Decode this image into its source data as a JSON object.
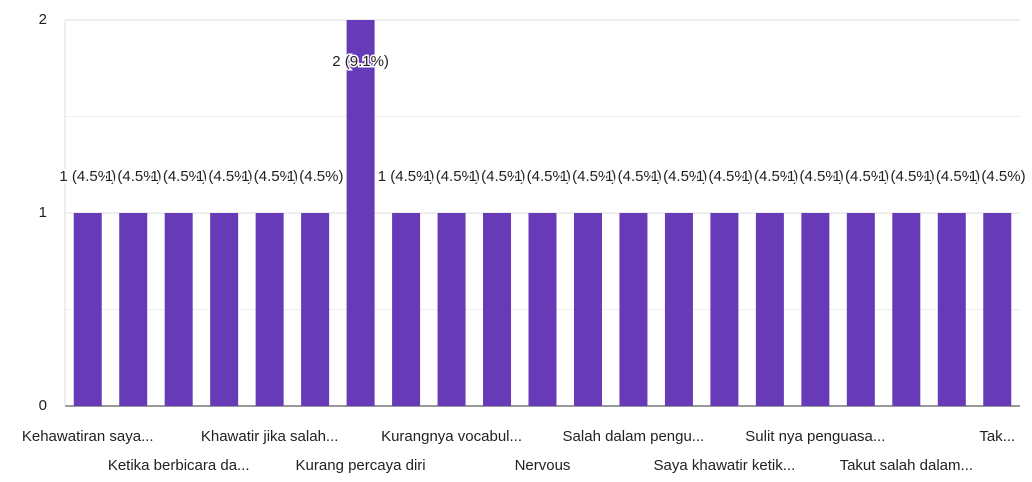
{
  "chart_data": {
    "type": "bar",
    "categories": [
      "Kehawatiran saya...",
      null,
      "Ketika berbicara da...",
      null,
      "Khawatir jika salah...",
      null,
      "Kurang percaya diri",
      null,
      "Kurangnya vocabul...",
      null,
      "Nervous",
      null,
      "Salah dalam pengu...",
      null,
      "Saya khawatir ketik...",
      null,
      "Sulit nya penguasa...",
      null,
      "Takut salah dalam...",
      null,
      "Tak..."
    ],
    "values": [
      1,
      1,
      1,
      1,
      1,
      1,
      2,
      1,
      1,
      1,
      1,
      1,
      1,
      1,
      1,
      1,
      1,
      1,
      1,
      1,
      1
    ],
    "value_labels": [
      "1 (4.5%)",
      "1 (4.5%)",
      "1 (4.5%)",
      "1 (4.5%)",
      "1 (4.5%)",
      "1 (4.5%)",
      "2 (9.1%)",
      "1 (4.5%)",
      "1 (4.5%)",
      "1 (4.5%)",
      "1 (4.5%)",
      "1 (4.5%)",
      "1 (4.5%)",
      "1 (4.5%)",
      "1 (4.5%)",
      "1 (4.5%)",
      "1 (4.5%)",
      "1 (4.5%)",
      "1 (4.5%)",
      "1 (4.5%)",
      "1 (4.5%)"
    ],
    "color": "#673ab7",
    "ylim": [
      0,
      2
    ],
    "yticks": [
      0,
      1,
      2
    ],
    "minor_yticks": [
      0.5,
      1.5
    ],
    "grid": true
  }
}
